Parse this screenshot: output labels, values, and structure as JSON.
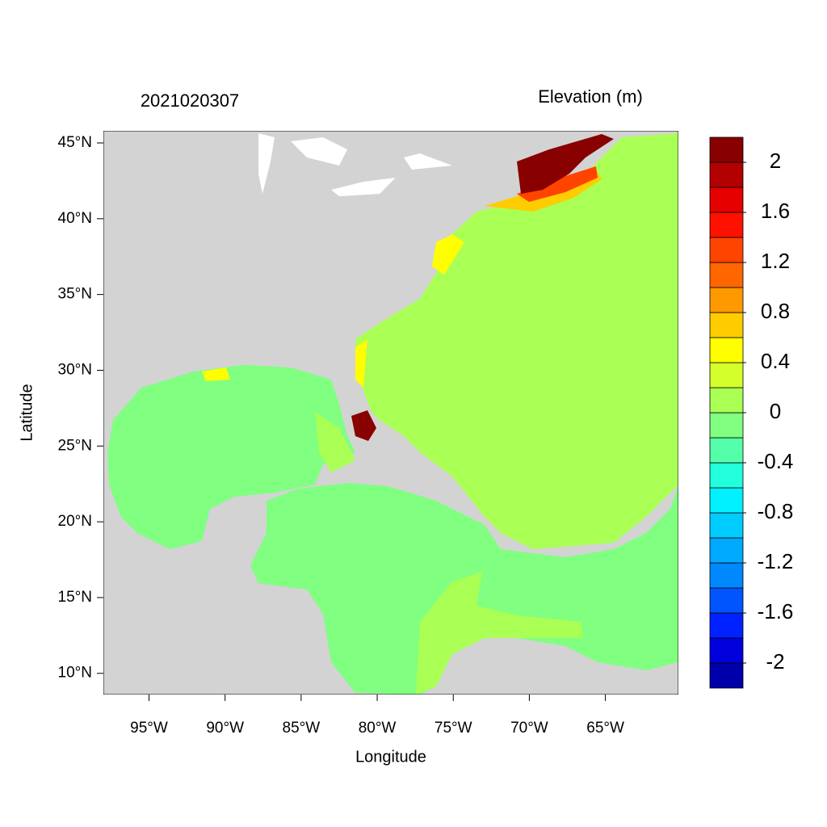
{
  "chart_data": {
    "type": "map",
    "title": "2021020307",
    "subtitle": "Elevation (m)",
    "x_label": "Longitude",
    "y_label": "Latitude",
    "xlim": [
      -98.0,
      -60.2
    ],
    "ylim": [
      8.6,
      45.8
    ],
    "xticks": [
      {
        "value": -95,
        "label": "95°W"
      },
      {
        "value": -90,
        "label": "90°W"
      },
      {
        "value": -85,
        "label": "85°W"
      },
      {
        "value": -80,
        "label": "80°W"
      },
      {
        "value": -75,
        "label": "75°W"
      },
      {
        "value": -70,
        "label": "70°W"
      },
      {
        "value": -65,
        "label": "65°W"
      }
    ],
    "yticks": [
      {
        "value": 10,
        "label": "10°N"
      },
      {
        "value": 15,
        "label": "15°N"
      },
      {
        "value": 20,
        "label": "20°N"
      },
      {
        "value": 25,
        "label": "25°N"
      },
      {
        "value": 30,
        "label": "30°N"
      },
      {
        "value": 35,
        "label": "35°N"
      },
      {
        "value": 40,
        "label": "40°N"
      },
      {
        "value": 45,
        "label": "45°N"
      }
    ],
    "colorbar": {
      "lim": [
        -2.2,
        2.2
      ],
      "ticks": [
        -2,
        -1.6,
        -1.2,
        -0.8,
        -0.4,
        0,
        0.4,
        0.8,
        1.2,
        1.6,
        2
      ],
      "colors": [
        "#0000aa",
        "#0000dd",
        "#0022ff",
        "#0055ff",
        "#0088ff",
        "#00aaff",
        "#00ccff",
        "#00f0ff",
        "#22ffdd",
        "#55ffaa",
        "#80ff80",
        "#aaff55",
        "#d4ff2a",
        "#ffff00",
        "#ffcc00",
        "#ff9900",
        "#ff6600",
        "#ff4400",
        "#ff1100",
        "#e60000",
        "#b30000",
        "#880000"
      ]
    }
  }
}
